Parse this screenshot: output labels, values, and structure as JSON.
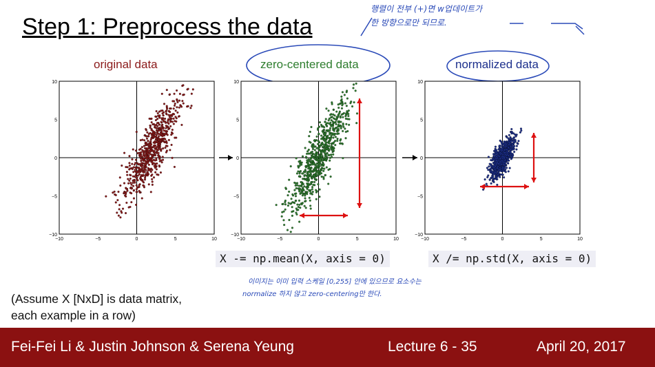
{
  "slide": {
    "title": "Step 1: Preprocess the data",
    "panels": [
      {
        "title": "original data",
        "color": "#8b1a1a",
        "circled": false
      },
      {
        "title": "zero-centered data",
        "color": "#2e7d2e",
        "circled": true
      },
      {
        "title": "normalized data",
        "color": "#1c2f8c",
        "circled": true
      }
    ],
    "axis_ticks": {
      "y": [
        "10",
        "5",
        "0",
        "−5",
        "−10"
      ],
      "x": [
        "−10",
        "−5",
        "0",
        "5",
        "10"
      ]
    },
    "code": [
      "X -= np.mean(X, axis = 0)",
      "X /= np.std(X, axis = 0)"
    ],
    "note": [
      "(Assume X [NxD] is data matrix,",
      "each example in a row)"
    ],
    "handwritten": [
      "행렬이 전부 (+)면 w업데이트가",
      "한 방향으로만 되므로.",
      "이미지는 이미 입력 스케일 [0,255] 안에 있으므로 요소수는",
      "normalize 하지 않고 zero-centering만 한다."
    ]
  },
  "footer": {
    "authors": "Fei-Fei Li & Justin Johnson & Serena Yeung",
    "lecture": "Lecture 6 - 35",
    "date": "April 20, 2017"
  },
  "colors": {
    "footer_bg": "#8b1111",
    "arrow": "#dd1111",
    "annotation": "#2a4ab8"
  }
}
